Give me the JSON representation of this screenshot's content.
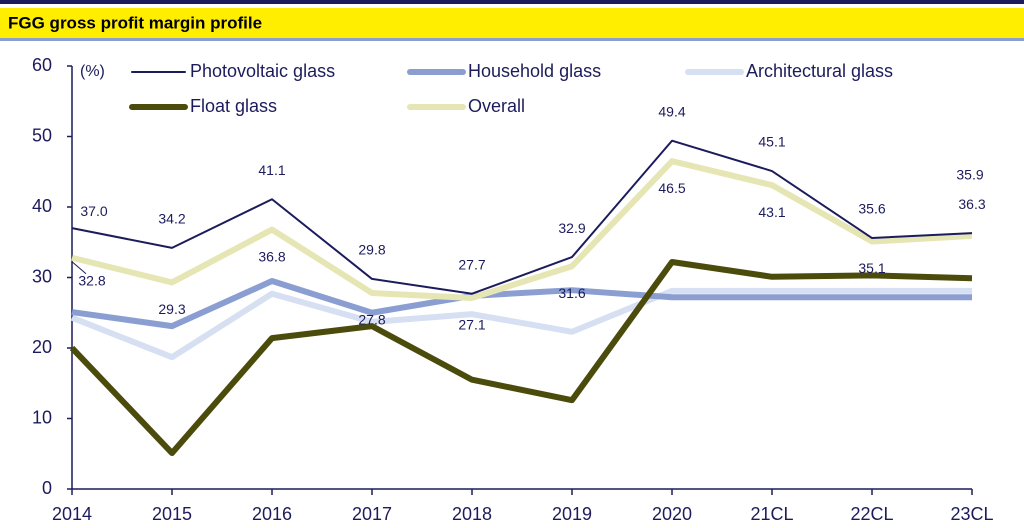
{
  "chart_data": {
    "type": "line",
    "title": "FGG gross profit margin profile",
    "y_label": "(%)",
    "categories": [
      "2014",
      "2015",
      "2016",
      "2017",
      "2018",
      "2019",
      "2020",
      "21CL",
      "22CL",
      "23CL"
    ],
    "ylim": [
      0,
      60
    ],
    "yticks": [
      0,
      10,
      20,
      30,
      40,
      50,
      60
    ],
    "series": [
      {
        "name": "Photovoltaic glass",
        "color": "#1c1c5c",
        "values": [
          37.0,
          34.2,
          41.1,
          29.8,
          27.7,
          32.9,
          49.4,
          45.1,
          35.6,
          36.3
        ],
        "value_labels": [
          "37.0",
          "34.2",
          "41.1",
          "29.8",
          "27.7",
          "32.9",
          "49.4",
          "45.1",
          "35.6",
          "36.3"
        ]
      },
      {
        "name": "Household glass",
        "color": "#8a9ed2",
        "values": [
          25.1,
          23.1,
          29.5,
          25.0,
          27.4,
          28.2,
          27.2,
          27.2,
          27.2,
          27.2
        ]
      },
      {
        "name": "Architectural glass",
        "color": "#d6e0f2",
        "values": [
          24.3,
          18.7,
          27.7,
          23.7,
          24.8,
          22.3,
          28.1,
          28.1,
          28.1,
          28.1
        ]
      },
      {
        "name": "Float glass",
        "color": "#4b4b0c",
        "values": [
          20.0,
          5.1,
          21.4,
          23.1,
          15.5,
          12.6,
          32.2,
          30.1,
          30.3,
          29.9
        ]
      },
      {
        "name": "Overall",
        "color": "#e6e6b4",
        "values": [
          32.8,
          29.3,
          36.8,
          27.8,
          27.1,
          31.6,
          46.5,
          43.1,
          35.1,
          35.9
        ],
        "value_labels": [
          "32.8",
          "29.3",
          "36.8",
          "27.8",
          "27.1",
          "31.6",
          "46.5",
          "43.1",
          "35.1",
          "35.9"
        ]
      }
    ]
  }
}
